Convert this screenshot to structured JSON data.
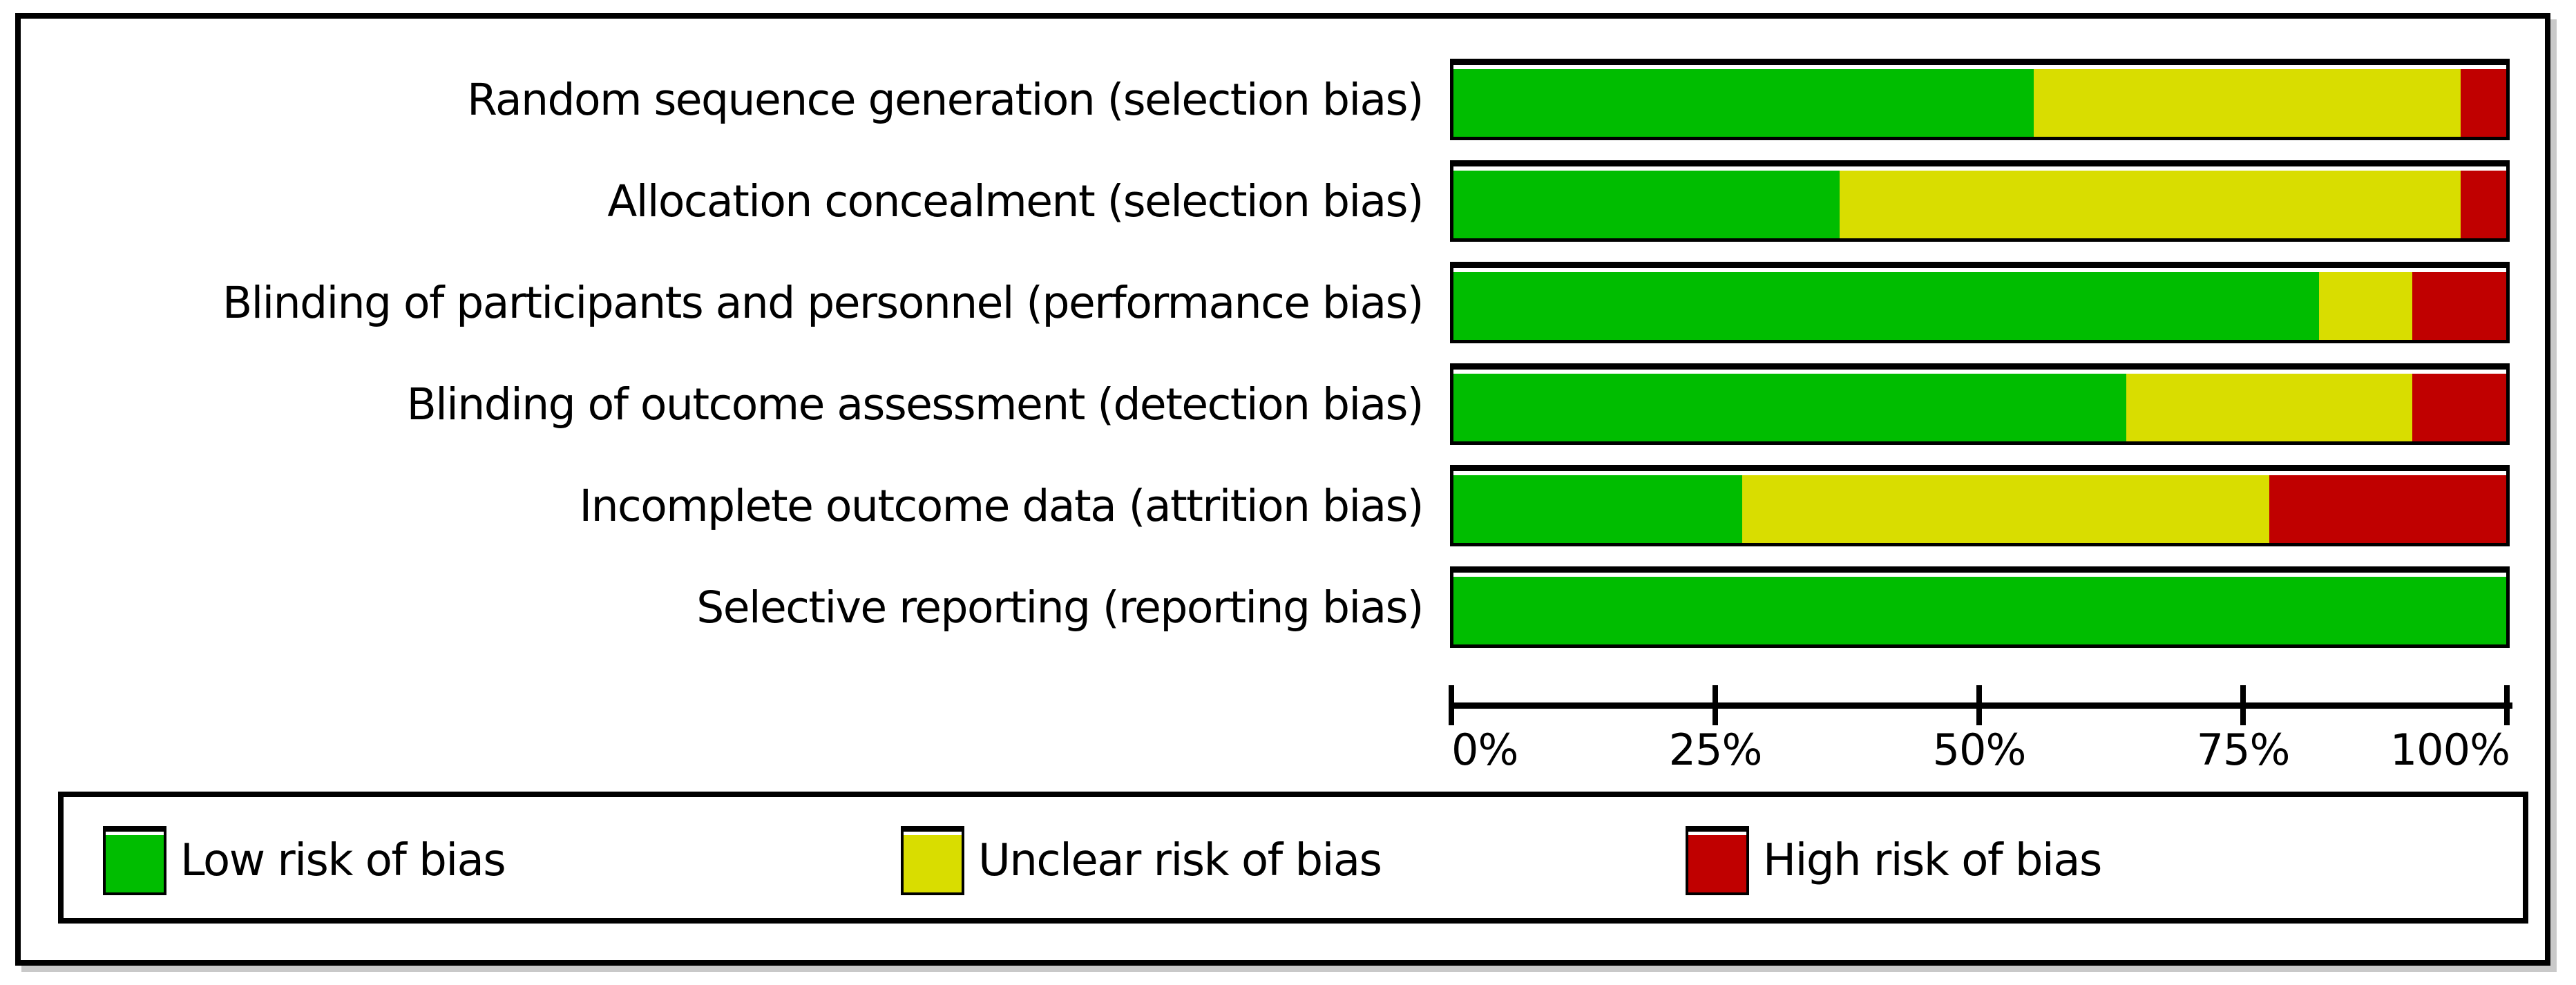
{
  "chart_data": {
    "type": "bar",
    "orientation": "horizontal",
    "stacked": true,
    "title": "",
    "xlabel": "",
    "ylabel": "",
    "categories": [
      "Random sequence generation (selection bias)",
      "Allocation concealment (selection bias)",
      "Blinding of participants and personnel (performance bias)",
      "Blinding of outcome assessment (detection bias)",
      "Incomplete outcome data (attrition bias)",
      "Selective reporting (reporting bias)"
    ],
    "series": [
      {
        "name": "Low risk of bias",
        "color": "#00bd00",
        "values": [
          55.1,
          36.7,
          82.2,
          63.9,
          27.4,
          100
        ]
      },
      {
        "name": "Unclear risk of bias",
        "color": "#d9dd00",
        "values": [
          40.6,
          59.0,
          8.9,
          27.2,
          50.1,
          0
        ]
      },
      {
        "name": "High risk of bias",
        "color": "#c00000",
        "values": [
          4.3,
          4.3,
          8.9,
          8.9,
          22.5,
          0
        ]
      }
    ],
    "x_axis": {
      "range": [
        0,
        100
      ],
      "tick_labels": [
        "0%",
        "25%",
        "50%",
        "75%",
        "100%"
      ]
    },
    "legend": {
      "position": "bottom",
      "entries": [
        "Low risk of bias",
        "Unclear risk of bias",
        "High risk of bias"
      ]
    }
  }
}
